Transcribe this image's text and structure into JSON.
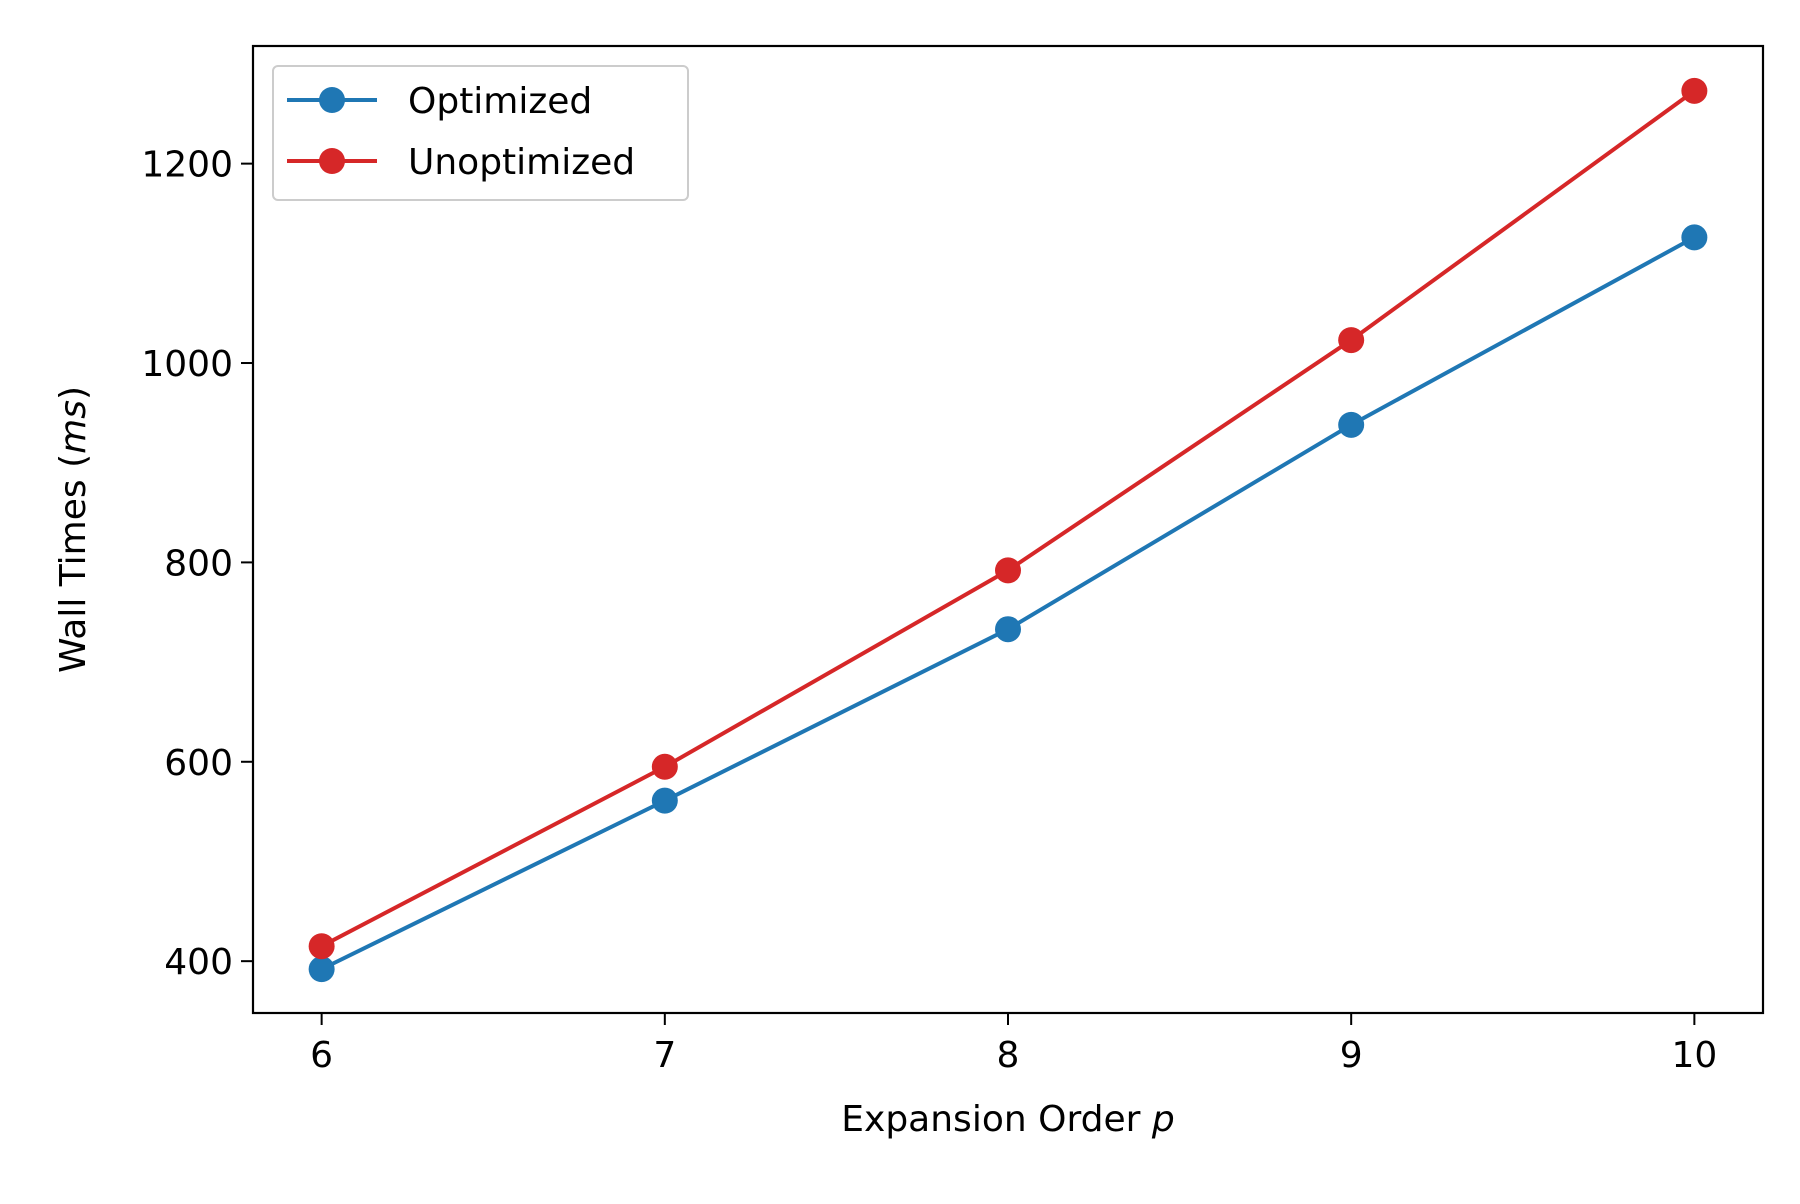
{
  "chart_data": {
    "type": "line",
    "title": "",
    "xlabel": {
      "text": "Expansion Order ",
      "var": "p"
    },
    "ylabel": {
      "text": "Wall Times (",
      "var": "ms",
      "suffix": ")"
    },
    "x": [
      6,
      7,
      8,
      9,
      10
    ],
    "x_ticks": [
      "6",
      "7",
      "8",
      "9",
      "10"
    ],
    "y_ticks": [
      "400",
      "600",
      "800",
      "1000",
      "1200"
    ],
    "xlim": [
      5.8,
      10.2
    ],
    "ylim": [
      348,
      1318
    ],
    "grid": false,
    "legend_position": "top-left",
    "series": [
      {
        "name": "Optimized",
        "color": "#1f77b4",
        "values": [
          392,
          561,
          733,
          938,
          1126
        ]
      },
      {
        "name": "Unoptimized",
        "color": "#d62728",
        "values": [
          415,
          595,
          792,
          1023,
          1273
        ]
      }
    ]
  }
}
